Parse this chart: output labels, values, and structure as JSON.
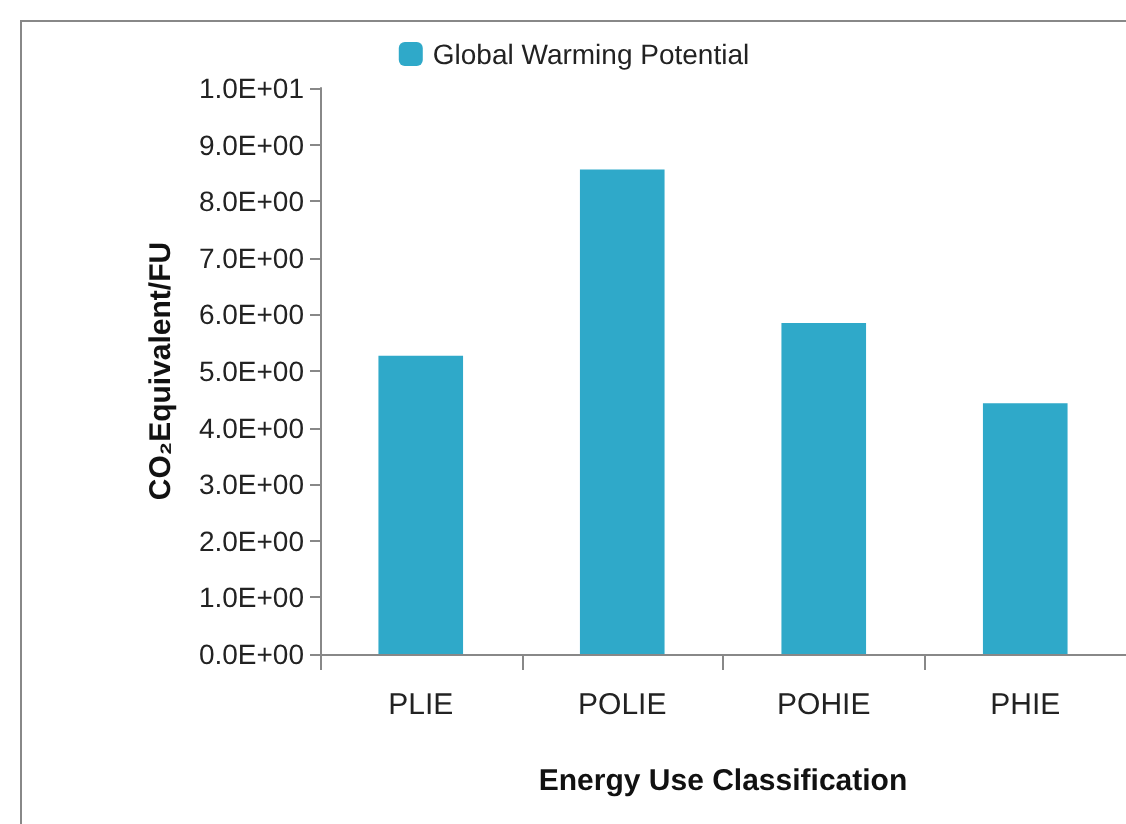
{
  "chart_data": {
    "type": "bar",
    "xlabel": "Energy Use Classification",
    "ylabel": "CO₂Equivalent/FU",
    "categories": [
      "PLIE",
      "POLIE",
      "POHIE",
      "PHIE"
    ],
    "series": [
      {
        "name": "Global Warming Potential",
        "color": "#2fa9c9",
        "values": [
          5.27,
          8.56,
          5.85,
          4.43
        ]
      }
    ],
    "ylim": [
      0,
      10
    ],
    "yticks": [
      {
        "value": 0,
        "label": "0.0E+00"
      },
      {
        "value": 1,
        "label": "1.0E+00"
      },
      {
        "value": 2,
        "label": "2.0E+00"
      },
      {
        "value": 3,
        "label": "3.0E+00"
      },
      {
        "value": 4,
        "label": "4.0E+00"
      },
      {
        "value": 5,
        "label": "5.0E+00"
      },
      {
        "value": 6,
        "label": "6.0E+00"
      },
      {
        "value": 7,
        "label": "7.0E+00"
      },
      {
        "value": 8,
        "label": "8.0E+00"
      },
      {
        "value": 9,
        "label": "9.0E+00"
      },
      {
        "value": 10,
        "label": "1.0E+01"
      }
    ],
    "grid": false,
    "legend": "top"
  }
}
